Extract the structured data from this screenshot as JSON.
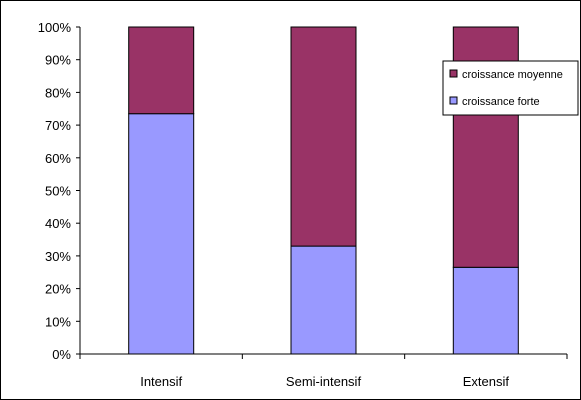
{
  "chart_data": {
    "type": "bar",
    "stacked": true,
    "percent": true,
    "categories": [
      "Intensif",
      "Semi-intensif",
      "Extensif"
    ],
    "series": [
      {
        "name": "croissance forte",
        "values": [
          73.5,
          33,
          26.5
        ],
        "color": "#9999ff"
      },
      {
        "name": "croissance moyenne",
        "values": [
          26.5,
          67,
          73.5
        ],
        "color": "#993366"
      }
    ],
    "ylim": [
      0,
      100
    ],
    "y_ticks": [
      "0%",
      "10%",
      "20%",
      "30%",
      "40%",
      "50%",
      "60%",
      "70%",
      "80%",
      "90%",
      "100%"
    ],
    "grid": false,
    "legend_position": "right",
    "legend_order": [
      "croissance moyenne",
      "croissance forte"
    ],
    "title": "",
    "xlabel": "",
    "ylabel": ""
  }
}
